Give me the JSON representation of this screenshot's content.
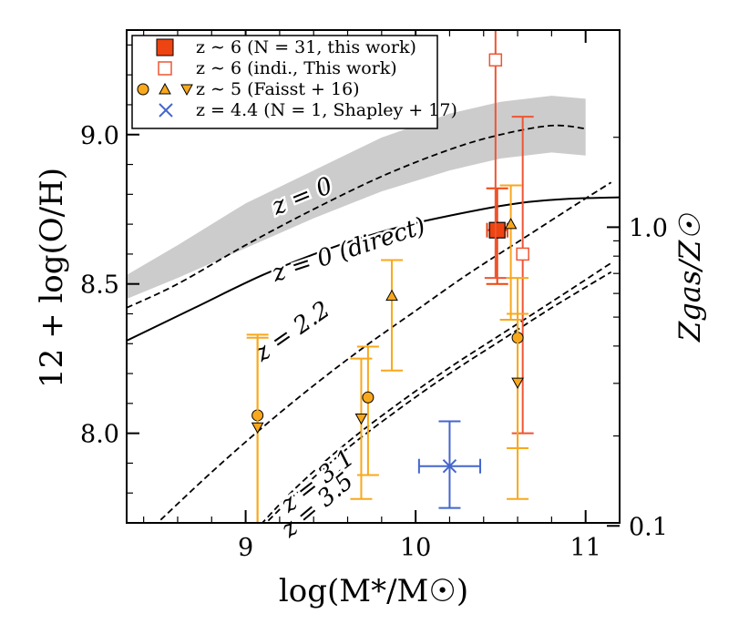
{
  "chart_data": {
    "type": "scatter",
    "xlabel": "log(M*/M☉)",
    "ylabel": "12 + log(O/H)",
    "right_ylabel": "Zgas/Z☉",
    "xlim": [
      8.3,
      11.2
    ],
    "ylim": [
      7.7,
      9.35
    ],
    "x_ticks": [
      9,
      10,
      11
    ],
    "y_ticks": [
      8.0,
      8.5,
      9.0
    ],
    "right_ticks": [
      {
        "label": "0.1",
        "oh": 7.69
      },
      {
        "label": "1.0",
        "oh": 8.69
      }
    ],
    "legend_position": "top-left",
    "legend": [
      {
        "label": "z ∼ 6 (N = 31, this work)",
        "marker": "square-filled",
        "color": "#ee4411"
      },
      {
        "label": "z ∼ 6 (indi.,  This work)",
        "marker": "square-open",
        "color": "#ee5533"
      },
      {
        "label": "z ∼ 5 (Faisst + 16)",
        "marker": "circle-tri-tri",
        "color": "#f8a81c"
      },
      {
        "label": "z = 4.4 (N = 1,  Shapley + 17)",
        "marker": "x",
        "color": "#4466cc"
      }
    ],
    "annotations": [
      {
        "text": "z = 0",
        "x": 9.35,
        "y": 8.77,
        "angle": -22
      },
      {
        "text": "z = 0  (direct)",
        "x": 9.62,
        "y": 8.59,
        "angle": -18
      },
      {
        "text": "z = 2.2",
        "x": 9.3,
        "y": 8.32,
        "angle": -35
      },
      {
        "text": "z = 3.1",
        "x": 9.45,
        "y": 7.82,
        "angle": -38
      },
      {
        "text": "z = 3.5",
        "x": 9.45,
        "y": 7.74,
        "angle": -40
      }
    ],
    "shaded_band": {
      "name": "z = 0 scatter",
      "x": [
        8.3,
        8.6,
        9.0,
        9.4,
        9.8,
        10.2,
        10.5,
        10.8,
        11.0
      ],
      "y_low": [
        8.45,
        8.52,
        8.62,
        8.72,
        8.81,
        8.88,
        8.92,
        8.94,
        8.93
      ],
      "y_high": [
        8.53,
        8.63,
        8.77,
        8.88,
        8.99,
        9.07,
        9.11,
        9.13,
        9.12
      ]
    },
    "series": [
      {
        "name": "z = 0",
        "style": "dashed",
        "x": [
          8.3,
          8.6,
          9.0,
          9.4,
          9.8,
          10.2,
          10.5,
          10.8,
          11.0
        ],
        "y": [
          8.42,
          8.5,
          8.63,
          8.75,
          8.86,
          8.95,
          9.0,
          9.03,
          9.02
        ]
      },
      {
        "name": "z = 0 (direct)",
        "style": "solid",
        "x": [
          8.3,
          8.7,
          9.1,
          9.5,
          9.9,
          10.3,
          10.6,
          10.9,
          11.2
        ],
        "y": [
          8.31,
          8.42,
          8.53,
          8.62,
          8.69,
          8.74,
          8.77,
          8.785,
          8.79
        ]
      },
      {
        "name": "z = 2.2",
        "style": "dashed",
        "x": [
          8.5,
          8.8,
          9.1,
          9.4,
          9.7,
          10.0,
          10.3,
          10.6,
          10.9,
          11.15
        ],
        "y": [
          7.71,
          7.87,
          8.02,
          8.16,
          8.29,
          8.41,
          8.53,
          8.64,
          8.75,
          8.84
        ]
      },
      {
        "name": "z = 3.1",
        "style": "dashed",
        "x": [
          9.05,
          9.3,
          9.6,
          9.9,
          10.2,
          10.5,
          10.8,
          11.15
        ],
        "y": [
          7.67,
          7.82,
          7.97,
          8.1,
          8.22,
          8.33,
          8.44,
          8.57
        ]
      },
      {
        "name": "z = 3.5",
        "style": "dashed",
        "x": [
          9.05,
          9.3,
          9.6,
          9.9,
          10.2,
          10.5,
          10.8,
          11.15
        ],
        "y": [
          7.66,
          7.8,
          7.95,
          8.08,
          8.2,
          8.31,
          8.42,
          8.54
        ]
      }
    ],
    "points": [
      {
        "group": "z~6 stack",
        "marker": "square-filled",
        "color": "#ee4411",
        "x": 10.48,
        "y": 8.68,
        "y_lo": 8.5,
        "y_hi": 8.82,
        "x_lo": 10.42,
        "x_hi": 10.54
      },
      {
        "group": "z~6 indi",
        "marker": "square-open",
        "color": "#ee5533",
        "x": 10.47,
        "y": 9.25,
        "y_lo": 8.52,
        "y_hi": 9.35
      },
      {
        "group": "z~6 indi",
        "marker": "square-open",
        "color": "#ee5533",
        "x": 10.63,
        "y": 8.6,
        "y_lo": 8.0,
        "y_hi": 9.06
      },
      {
        "group": "z~5 Faisst",
        "marker": "circle",
        "color": "#f8a81c",
        "x": 9.07,
        "y": 8.06,
        "y_lo": 7.67,
        "y_hi": 8.33
      },
      {
        "group": "z~5 Faisst",
        "marker": "triangle-down",
        "color": "#f8a81c",
        "x": 9.07,
        "y": 8.02,
        "y_lo": 7.66,
        "y_hi": 8.32
      },
      {
        "group": "z~5 Faisst",
        "marker": "circle",
        "color": "#f8a81c",
        "x": 9.72,
        "y": 8.12,
        "y_lo": 7.86,
        "y_hi": 8.29
      },
      {
        "group": "z~5 Faisst",
        "marker": "triangle-down",
        "color": "#f8a81c",
        "x": 9.68,
        "y": 8.05,
        "y_lo": 7.78,
        "y_hi": 8.25
      },
      {
        "group": "z~5 Faisst",
        "marker": "triangle-up",
        "color": "#f8a81c",
        "x": 9.86,
        "y": 8.46,
        "y_lo": 8.21,
        "y_hi": 8.58
      },
      {
        "group": "z~5 Faisst",
        "marker": "triangle-up",
        "color": "#f8a81c",
        "x": 10.56,
        "y": 8.7,
        "y_lo": 8.38,
        "y_hi": 8.83
      },
      {
        "group": "z~5 Faisst",
        "marker": "circle",
        "color": "#f8a81c",
        "x": 10.6,
        "y": 8.32,
        "y_lo": 7.95,
        "y_hi": 8.52
      },
      {
        "group": "z~5 Faisst",
        "marker": "triangle-down",
        "color": "#f8a81c",
        "x": 10.6,
        "y": 8.17,
        "y_lo": 7.78,
        "y_hi": 8.4
      },
      {
        "group": "z=4.4 Shapley",
        "marker": "x",
        "color": "#4466cc",
        "x": 10.2,
        "y": 7.89,
        "y_lo": 7.75,
        "y_hi": 8.04,
        "x_lo": 10.02,
        "x_hi": 10.38
      }
    ]
  }
}
